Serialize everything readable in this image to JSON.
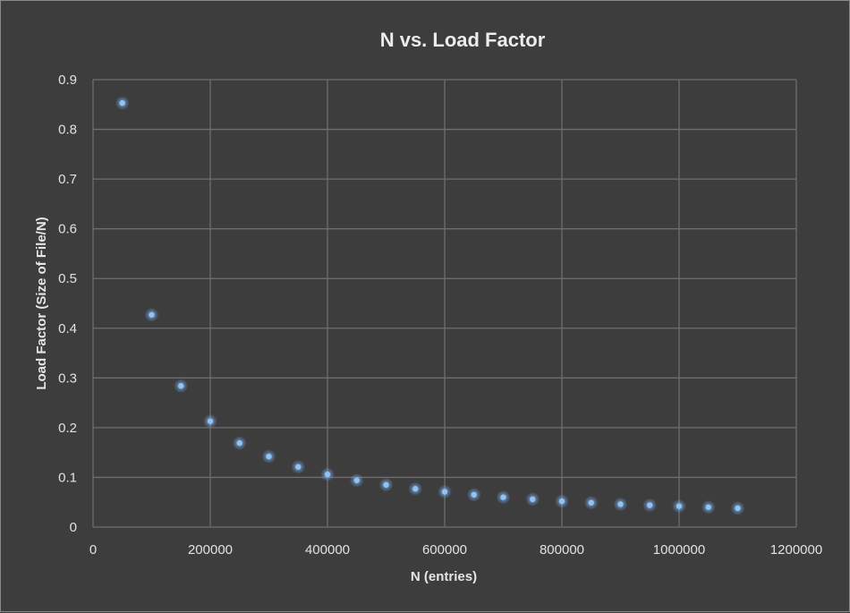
{
  "chart_data": {
    "type": "scatter",
    "title": "N vs. Load Factor",
    "xlabel": "N (entries)",
    "ylabel": "Load Factor (Size of File/N)",
    "xlim": [
      0,
      1200000
    ],
    "ylim": [
      0,
      0.9
    ],
    "xticks": [
      "0",
      "200000",
      "400000",
      "600000",
      "800000",
      "1000000",
      "1200000"
    ],
    "yticks": [
      "0",
      "0.1",
      "0.2",
      "0.3",
      "0.4",
      "0.5",
      "0.6",
      "0.7",
      "0.8",
      "0.9"
    ],
    "grid": true,
    "legend": "none",
    "marker_color": "#8fc3f0",
    "x": [
      50000,
      100000,
      150000,
      200000,
      250000,
      300000,
      350000,
      400000,
      450000,
      500000,
      550000,
      600000,
      650000,
      700000,
      750000,
      800000,
      850000,
      900000,
      950000,
      1000000,
      1050000,
      1100000
    ],
    "y": [
      0.853,
      0.427,
      0.284,
      0.213,
      0.169,
      0.142,
      0.121,
      0.106,
      0.094,
      0.085,
      0.077,
      0.071,
      0.065,
      0.06,
      0.056,
      0.052,
      0.049,
      0.046,
      0.044,
      0.042,
      0.04,
      0.038
    ]
  }
}
